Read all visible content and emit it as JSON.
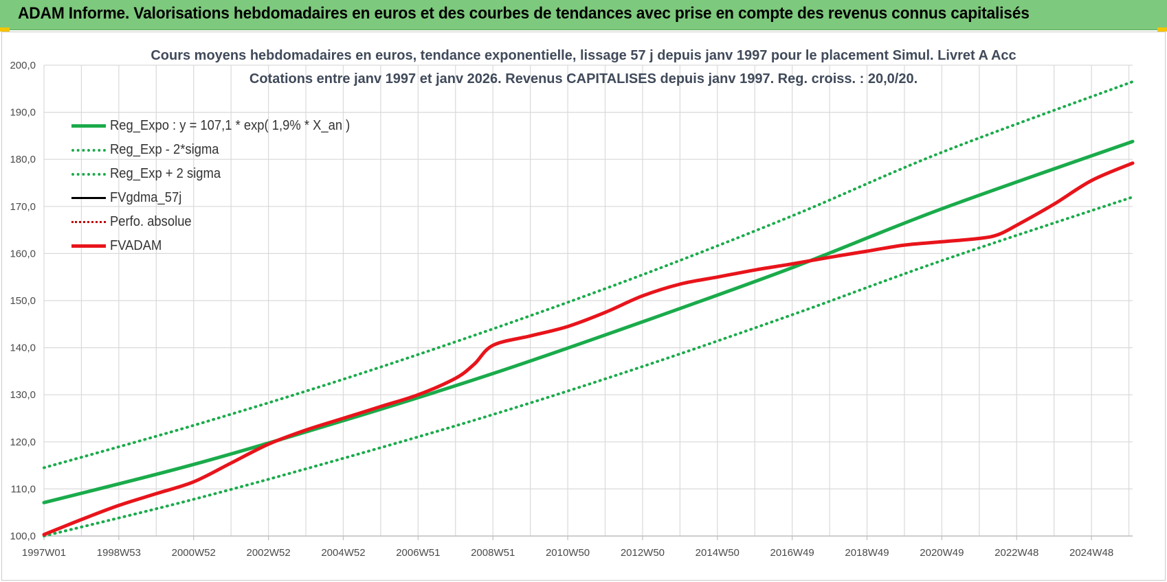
{
  "banner": {
    "title": "ADAM Informe. Valorisations hebdomadaires en euros et des courbes de tendances avec prise en compte des revenus connus capitalisés"
  },
  "colors": {
    "banner_bg": "#7dc97d",
    "reg_green": "#1aab4b",
    "fvadam_red": "#e8141b",
    "perfo_red": "#c00000",
    "fvgdma_black": "#000000",
    "grid": "#d9d9d9"
  },
  "chart_data": {
    "type": "line",
    "title": "Cours moyens hebdomadaires en euros, tendance exponentielle, lissage 57 j depuis janv 1997 pour le placement Simul. Livret A Acc",
    "subtitle": "Cotations entre janv 1997 et janv 2026. Revenus CAPITALISES depuis janv 1997. Reg. croiss. : 20,0/20.",
    "xlabel": "",
    "ylabel": "",
    "x_ticks": [
      "1997W01",
      "1998W53",
      "2000W52",
      "2002W52",
      "2004W52",
      "2006W51",
      "2008W51",
      "2010W50",
      "2012W50",
      "2014W50",
      "2016W49",
      "2018W49",
      "2020W49",
      "2022W48",
      "2024W48"
    ],
    "x_tick_years": [
      1997.0,
      1999.0,
      2001.0,
      2003.0,
      2005.0,
      2007.0,
      2009.0,
      2011.0,
      2013.0,
      2015.0,
      2017.0,
      2019.0,
      2021.0,
      2023.0,
      2025.0
    ],
    "xlim": [
      1997.0,
      2026.1
    ],
    "ylim": [
      100,
      200
    ],
    "y_ticks": [
      "100,0",
      "110,0",
      "120,0",
      "130,0",
      "140,0",
      "150,0",
      "160,0",
      "170,0",
      "180,0",
      "190,0",
      "200,0"
    ],
    "y_tick_values": [
      100,
      110,
      120,
      130,
      140,
      150,
      160,
      170,
      180,
      190,
      200
    ],
    "grid": true,
    "legend_position": "top-left",
    "legend": [
      {
        "name": "Reg_Expo : y = 107,1 * exp( 1,9% *  X_an )",
        "color": "#1aab4b",
        "style": "solid"
      },
      {
        "name": "Reg_Exp - 2*sigma",
        "color": "#1aab4b",
        "style": "dotted"
      },
      {
        "name": "Reg_Exp + 2 sigma",
        "color": "#1aab4b",
        "style": "dotted"
      },
      {
        "name": "FVgdma_57j",
        "color": "#000000",
        "style": "solid"
      },
      {
        "name": "Perfo. absolue",
        "color": "#c00000",
        "style": "dotted"
      },
      {
        "name": "FVADAM",
        "color": "#e8141b",
        "style": "solid"
      }
    ],
    "series": [
      {
        "name": "Reg_Expo : y = 107,1 * exp( 1,9% *  X_an )",
        "x": [
          1997.0,
          2001.0,
          2005.0,
          2009.0,
          2013.0,
          2017.0,
          2021.0,
          2026.1
        ],
        "values": [
          107.1,
          115.2,
          124.5,
          134.5,
          145.5,
          157.0,
          169.5,
          183.8
        ]
      },
      {
        "name": "Reg_Exp - 2*sigma",
        "x": [
          1997.0,
          2001.0,
          2005.0,
          2009.0,
          2013.0,
          2017.0,
          2021.0,
          2026.1
        ],
        "values": [
          100.0,
          107.8,
          116.5,
          125.8,
          136.0,
          147.0,
          158.5,
          172.0
        ]
      },
      {
        "name": "Reg_Exp + 2 sigma",
        "x": [
          1997.0,
          2001.0,
          2005.0,
          2009.0,
          2013.0,
          2017.0,
          2021.0,
          2026.1
        ],
        "values": [
          114.5,
          123.5,
          133.3,
          144.0,
          155.5,
          168.0,
          181.5,
          196.5
        ]
      },
      {
        "name": "FVADAM",
        "x": [
          1997.0,
          1998.0,
          1999.0,
          2000.0,
          2001.0,
          2002.0,
          2003.0,
          2004.0,
          2005.0,
          2006.0,
          2007.0,
          2008.0,
          2008.5,
          2009.0,
          2010.0,
          2011.0,
          2012.0,
          2013.0,
          2014.0,
          2015.0,
          2016.0,
          2017.0,
          2018.0,
          2019.0,
          2020.0,
          2021.0,
          2022.0,
          2022.5,
          2023.0,
          2024.0,
          2025.0,
          2026.1
        ],
        "values": [
          100.3,
          103.5,
          106.5,
          109.0,
          111.5,
          115.5,
          119.5,
          122.5,
          125.0,
          127.5,
          130.0,
          133.5,
          136.5,
          140.5,
          142.5,
          144.5,
          147.5,
          151.0,
          153.5,
          155.0,
          156.5,
          157.8,
          159.2,
          160.5,
          161.8,
          162.5,
          163.2,
          164.0,
          166.0,
          170.5,
          175.5,
          179.2
        ]
      }
    ]
  }
}
